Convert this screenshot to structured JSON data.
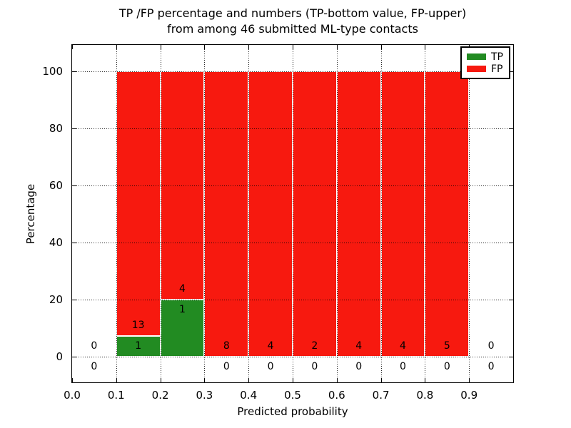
{
  "chart_data": {
    "type": "bar",
    "stacked": true,
    "title_line1": "TP /FP percentage and numbers (TP-bottom value, FP-upper)",
    "title_line2": "from among 46 submitted ML-type contacts",
    "xlabel": "Predicted probability",
    "ylabel": "Percentage",
    "total_contacts": 46,
    "xlim": [
      0.0,
      1.0
    ],
    "ylim": [
      -9.4,
      109.4
    ],
    "yticks": [
      0,
      20,
      40,
      60,
      80,
      100
    ],
    "xticks": [
      "0.0",
      "0.1",
      "0.2",
      "0.3",
      "0.4",
      "0.5",
      "0.6",
      "0.7",
      "0.8",
      "0.9"
    ],
    "grid": "dotted black, both axes, drawn over bars",
    "legend": {
      "position": "upper right",
      "entries": [
        {
          "label": "TP",
          "color": "#228b22"
        },
        {
          "label": "FP",
          "color": "#f7190f"
        }
      ]
    },
    "bins": [
      {
        "x_start": 0.0,
        "x_end": 0.1,
        "tp_count": 0,
        "fp_count": 0,
        "tp_pct": 0,
        "fp_pct": 0
      },
      {
        "x_start": 0.1,
        "x_end": 0.2,
        "tp_count": 1,
        "fp_count": 13,
        "tp_pct": 7.14,
        "fp_pct": 92.86
      },
      {
        "x_start": 0.2,
        "x_end": 0.3,
        "tp_count": 1,
        "fp_count": 4,
        "tp_pct": 20,
        "fp_pct": 80
      },
      {
        "x_start": 0.3,
        "x_end": 0.4,
        "tp_count": 0,
        "fp_count": 8,
        "tp_pct": 0,
        "fp_pct": 100
      },
      {
        "x_start": 0.4,
        "x_end": 0.5,
        "tp_count": 0,
        "fp_count": 4,
        "tp_pct": 0,
        "fp_pct": 100
      },
      {
        "x_start": 0.5,
        "x_end": 0.6,
        "tp_count": 0,
        "fp_count": 2,
        "tp_pct": 0,
        "fp_pct": 100
      },
      {
        "x_start": 0.6,
        "x_end": 0.7,
        "tp_count": 0,
        "fp_count": 4,
        "tp_pct": 0,
        "fp_pct": 100
      },
      {
        "x_start": 0.7,
        "x_end": 0.8,
        "tp_count": 0,
        "fp_count": 4,
        "tp_pct": 0,
        "fp_pct": 100
      },
      {
        "x_start": 0.8,
        "x_end": 0.9,
        "tp_count": 0,
        "fp_count": 5,
        "tp_pct": 0,
        "fp_pct": 100
      },
      {
        "x_start": 0.9,
        "x_end": 1.0,
        "tp_count": 0,
        "fp_count": 0,
        "tp_pct": 0,
        "fp_pct": 0
      }
    ]
  },
  "colors": {
    "tp": "#228b22",
    "fp": "#f7190f",
    "grid": "#000000",
    "spine": "#000000",
    "background": "#ffffff"
  }
}
